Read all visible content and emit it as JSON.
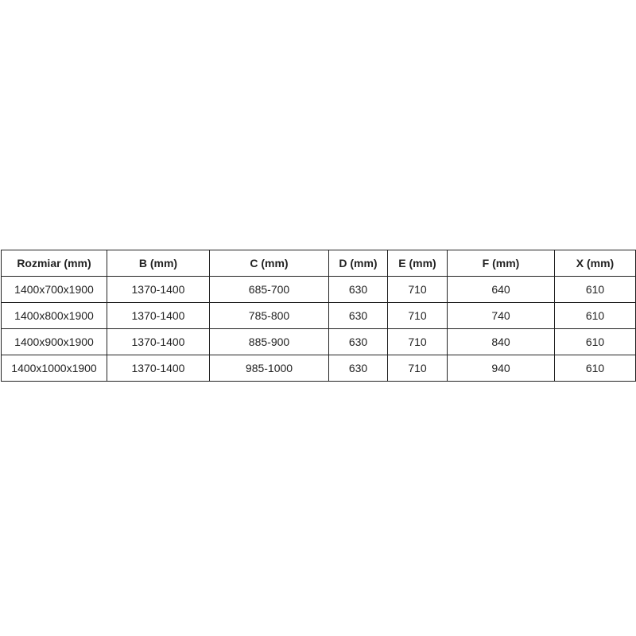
{
  "table": {
    "headers": [
      "Rozmiar (mm)",
      "B (mm)",
      "C (mm)",
      "D (mm)",
      "E (mm)",
      "F (mm)",
      "X (mm)"
    ],
    "rows": [
      [
        "1400x700x1900",
        "1370-1400",
        "685-700",
        "630",
        "710",
        "640",
        "610"
      ],
      [
        "1400x800x1900",
        "1370-1400",
        "785-800",
        "630",
        "710",
        "740",
        "610"
      ],
      [
        "1400x900x1900",
        "1370-1400",
        "885-900",
        "630",
        "710",
        "840",
        "610"
      ],
      [
        "1400x1000x1900",
        "1370-1400",
        "985-1000",
        "630",
        "710",
        "940",
        "610"
      ]
    ]
  }
}
